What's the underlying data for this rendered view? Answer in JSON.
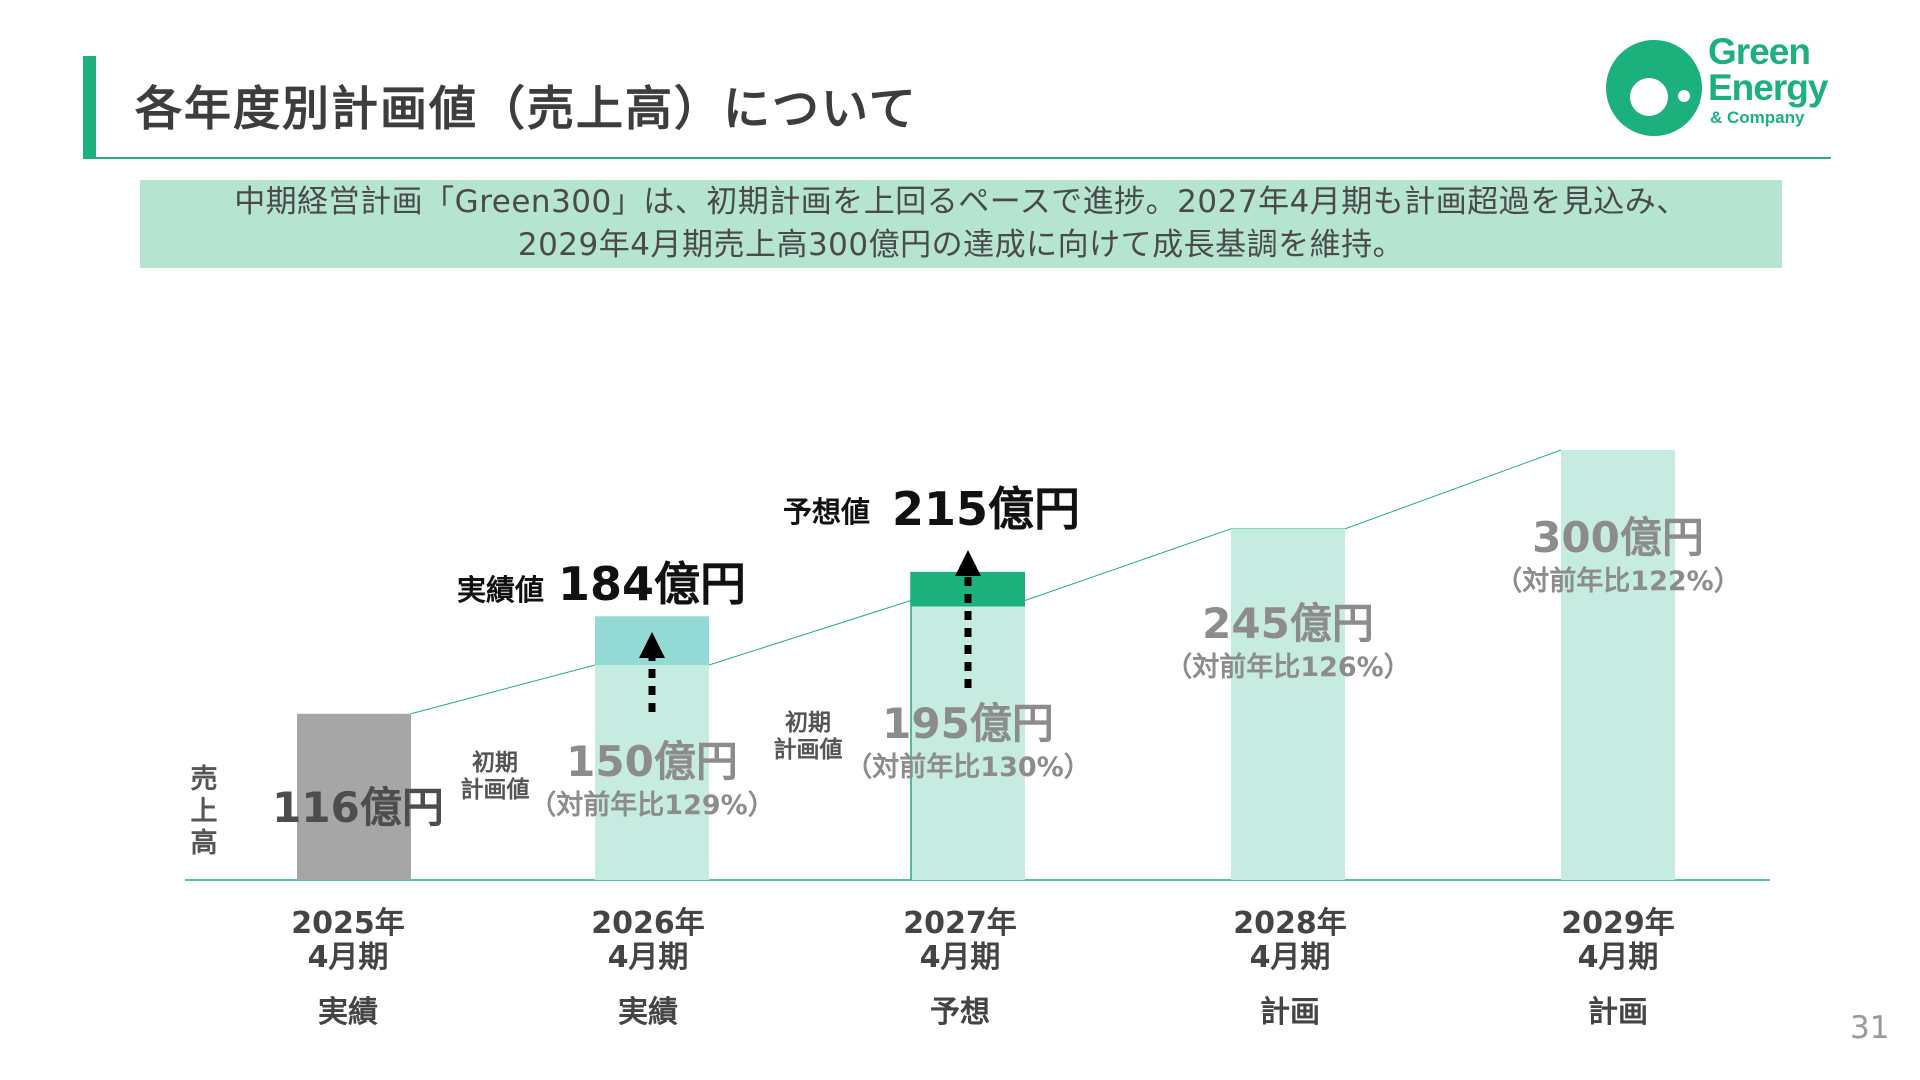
{
  "title": "各年度別計画値（売上高）について",
  "logo": {
    "line1": "Green",
    "line2": "Energy",
    "line3": "& Company"
  },
  "summary": {
    "line1": "中期経営計画「Green300」は、初期計画を上回るペースで進捗。2027年4月期も計画超過を見込み、",
    "line2": "2029年4月期売上高300億円の達成に向けて成長基調を維持。"
  },
  "page_number": "31",
  "colors": {
    "accent": "#1bb07c",
    "actual_bar": "#a6a6a6",
    "plan_bar": "#c6ebe0",
    "overshoot_2026": "#93d9d4",
    "overshoot_2027": "#1bb07c"
  },
  "chart_data": {
    "type": "bar",
    "ylabel": "売上高",
    "ylim": [
      0,
      300
    ],
    "categories": [
      {
        "year": "2025年",
        "period": "4月期",
        "kind": "実績"
      },
      {
        "year": "2026年",
        "period": "4月期",
        "kind": "実績"
      },
      {
        "year": "2027年",
        "period": "4月期",
        "kind": "予想"
      },
      {
        "year": "2028年",
        "period": "4月期",
        "kind": "計画"
      },
      {
        "year": "2029年",
        "period": "4月期",
        "kind": "計画"
      }
    ],
    "series": [
      {
        "name": "初期計画値",
        "values": [
          116,
          150,
          195,
          245,
          300
        ],
        "labels": [
          "116億円",
          "150億円",
          "195億円",
          "245億円",
          "300億円"
        ],
        "growth": [
          "",
          "（対前年比129%）",
          "（対前年比130%）",
          "（対前年比126%）",
          "（対前年比122%）"
        ]
      },
      {
        "name": "実績値・予想値",
        "values": [
          null,
          184,
          215,
          null,
          null
        ],
        "tags": [
          "",
          "実績値",
          "予想値",
          "",
          ""
        ],
        "labels": [
          "",
          "184億円",
          "215億円",
          "",
          ""
        ]
      }
    ],
    "annotations": [
      "初期\n計画値",
      "初期\n計画値"
    ]
  }
}
